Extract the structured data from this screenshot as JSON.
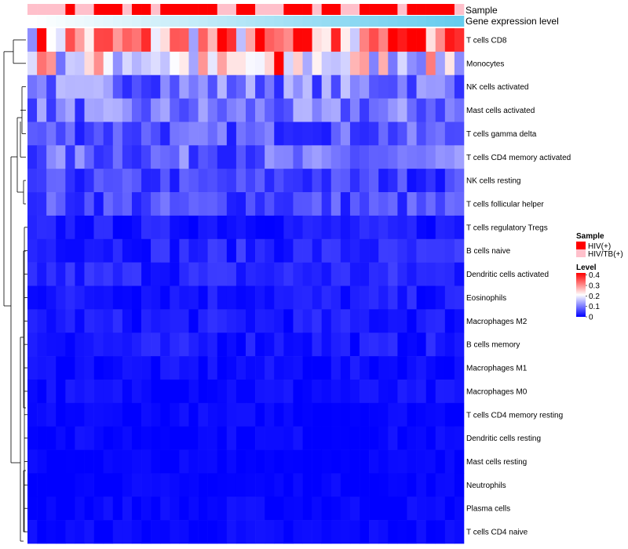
{
  "chart_data": {
    "type": "heatmap",
    "title": "",
    "rows": [
      "T cells CD8",
      "Monocytes",
      "NK cells activated",
      "Mast cells activated",
      "T cells gamma delta",
      "T cells CD4 memory activated",
      "NK cells resting",
      "T cells follicular helper",
      "T cells regulatory  Tregs",
      "B cells naive",
      "Dendritic cells activated",
      "Eosinophils",
      "Macrophages M2",
      "B cells memory",
      "Macrophages M1",
      "Macrophages M0",
      "T cells CD4 memory resting",
      "Dendritic cells resting",
      "Mast cells resting",
      "Neutrophils",
      "Plasma cells",
      "T cells CD4 naive"
    ],
    "n_columns": 46,
    "row_typical_levels": [
      0.28,
      0.2,
      0.1,
      0.09,
      0.07,
      0.08,
      0.05,
      0.06,
      0.02,
      0.03,
      0.03,
      0.02,
      0.02,
      0.02,
      0.01,
      0.01,
      0.005,
      0.005,
      0.002,
      0.002,
      0.005,
      0.005
    ],
    "sample_annotation": {
      "title": "Sample",
      "pattern": "HIV(+) = 1, HIV/TB(+) = 0 per column",
      "values": [
        0,
        0,
        0,
        0,
        1,
        0,
        0,
        1,
        1,
        1,
        0,
        1,
        1,
        0,
        1,
        1,
        1,
        1,
        1,
        1,
        0,
        0,
        1,
        1,
        0,
        0,
        0,
        1,
        1,
        1,
        0,
        1,
        1,
        0,
        0,
        1,
        1,
        1,
        1,
        0,
        1,
        1,
        1,
        1,
        1,
        0
      ]
    },
    "expression_annotation": {
      "title": "Gene expression level",
      "low_color": "#ffffff",
      "high_color": "#66ccee"
    },
    "legend_sample": {
      "title": "Sample",
      "items": [
        {
          "label": "HIV(+)",
          "color": "#ff0000"
        },
        {
          "label": "HIV/TB(+)",
          "color": "#ffc0cb"
        }
      ]
    },
    "legend_level": {
      "title": "Level",
      "ticks": [
        "0.4",
        "0.3",
        "0.2",
        "0.1",
        "0"
      ],
      "tick_values": [
        0.4,
        0.3,
        0.2,
        0.1,
        0
      ],
      "range": [
        0,
        0.42
      ],
      "colors": [
        "#0000ff",
        "#ffffff",
        "#ff0000"
      ]
    }
  }
}
